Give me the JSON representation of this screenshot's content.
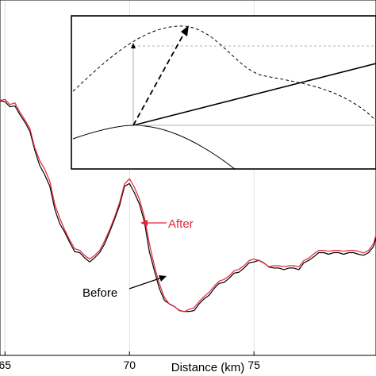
{
  "chart_data": {
    "type": "line",
    "xlabel": "Distance (km)",
    "ylabel": "",
    "xlim": [
      64.8,
      79.9
    ],
    "x_ticks": [
      "65",
      "70",
      "75"
    ],
    "grid": true,
    "series": [
      {
        "name": "Before",
        "color": "#000000",
        "x": [
          64.8,
          65.0,
          65.2,
          65.4,
          65.6,
          65.8,
          66.0,
          66.2,
          66.4,
          66.6,
          66.8,
          67.0,
          67.2,
          67.4,
          67.6,
          67.8,
          68.0,
          68.2,
          68.4,
          68.6,
          68.8,
          69.0,
          69.2,
          69.4,
          69.6,
          69.8,
          70.0,
          70.2,
          70.4,
          70.6,
          70.8,
          71.0,
          71.2,
          71.4,
          71.6,
          71.8,
          72.0,
          72.2,
          72.4,
          72.6,
          72.8,
          73.0,
          73.2,
          73.4,
          73.6,
          73.8,
          74.0,
          74.2,
          74.4,
          74.6,
          74.8,
          75.0,
          75.2,
          75.4,
          75.6,
          75.8,
          76.0,
          76.2,
          76.4,
          76.6,
          76.8,
          77.0,
          77.2,
          77.4,
          77.6,
          77.8,
          78.0,
          78.2,
          78.4,
          78.6,
          78.8,
          79.0,
          79.2,
          79.4,
          79.6,
          79.8,
          79.9
        ],
        "y": [
          0.86,
          0.85,
          0.83,
          0.84,
          0.8,
          0.77,
          0.74,
          0.66,
          0.6,
          0.57,
          0.52,
          0.43,
          0.38,
          0.34,
          0.3,
          0.27,
          0.26,
          0.24,
          0.23,
          0.24,
          0.26,
          0.3,
          0.34,
          0.39,
          0.45,
          0.52,
          0.53,
          0.5,
          0.45,
          0.38,
          0.27,
          0.19,
          0.12,
          0.08,
          0.06,
          0.05,
          0.04,
          0.03,
          0.03,
          0.04,
          0.06,
          0.08,
          0.1,
          0.12,
          0.14,
          0.15,
          0.16,
          0.18,
          0.19,
          0.2,
          0.22,
          0.23,
          0.23,
          0.22,
          0.21,
          0.2,
          0.2,
          0.2,
          0.2,
          0.2,
          0.2,
          0.22,
          0.23,
          0.25,
          0.26,
          0.26,
          0.26,
          0.26,
          0.26,
          0.26,
          0.26,
          0.26,
          0.26,
          0.25,
          0.26,
          0.29,
          0.32
        ]
      },
      {
        "name": "After",
        "color": "#e8213a",
        "x": [
          64.8,
          65.0,
          65.2,
          65.4,
          65.6,
          65.8,
          66.0,
          66.2,
          66.4,
          66.6,
          66.8,
          67.0,
          67.2,
          67.4,
          67.6,
          67.8,
          68.0,
          68.2,
          68.4,
          68.6,
          68.8,
          69.0,
          69.2,
          69.4,
          69.6,
          69.8,
          70.0,
          70.2,
          70.4,
          70.6,
          70.8,
          71.0,
          71.2,
          71.4,
          71.6,
          71.8,
          72.0,
          72.2,
          72.4,
          72.6,
          72.8,
          73.0,
          73.2,
          73.4,
          73.6,
          73.8,
          74.0,
          74.2,
          74.4,
          74.6,
          74.8,
          75.0,
          75.2,
          75.4,
          75.6,
          75.8,
          76.0,
          76.2,
          76.4,
          76.6,
          76.8,
          77.0,
          77.2,
          77.4,
          77.6,
          77.8,
          78.0,
          78.2,
          78.4,
          78.6,
          78.8,
          79.0,
          79.2,
          79.4,
          79.6,
          79.8,
          79.9
        ],
        "y": [
          0.86,
          0.86,
          0.84,
          0.85,
          0.81,
          0.78,
          0.75,
          0.67,
          0.62,
          0.59,
          0.54,
          0.45,
          0.4,
          0.35,
          0.31,
          0.28,
          0.27,
          0.25,
          0.24,
          0.25,
          0.27,
          0.31,
          0.35,
          0.4,
          0.46,
          0.53,
          0.55,
          0.52,
          0.47,
          0.4,
          0.3,
          0.21,
          0.14,
          0.09,
          0.06,
          0.05,
          0.04,
          0.03,
          0.04,
          0.05,
          0.07,
          0.09,
          0.11,
          0.13,
          0.15,
          0.16,
          0.17,
          0.19,
          0.2,
          0.21,
          0.23,
          0.24,
          0.23,
          0.22,
          0.21,
          0.21,
          0.21,
          0.21,
          0.21,
          0.21,
          0.21,
          0.23,
          0.24,
          0.26,
          0.27,
          0.27,
          0.27,
          0.27,
          0.27,
          0.27,
          0.27,
          0.27,
          0.27,
          0.26,
          0.27,
          0.3,
          0.33
        ]
      }
    ],
    "annotations": [
      {
        "text": "After",
        "color": "#e8213a",
        "points_to": {
          "x": 70.05,
          "y": 0.53
        }
      },
      {
        "text": "Before",
        "color": "#000000",
        "points_to": {
          "x": 71.05,
          "y": 0.19
        }
      }
    ]
  },
  "inset": {
    "description_free": true,
    "curves": [
      "dashed-hump",
      "solid-hump",
      "solid-tangent",
      "thin-tangent",
      "dashed-arrow"
    ]
  },
  "colors": {
    "before": "#000000",
    "after": "#e8213a",
    "grid": "#d9d9d9"
  }
}
